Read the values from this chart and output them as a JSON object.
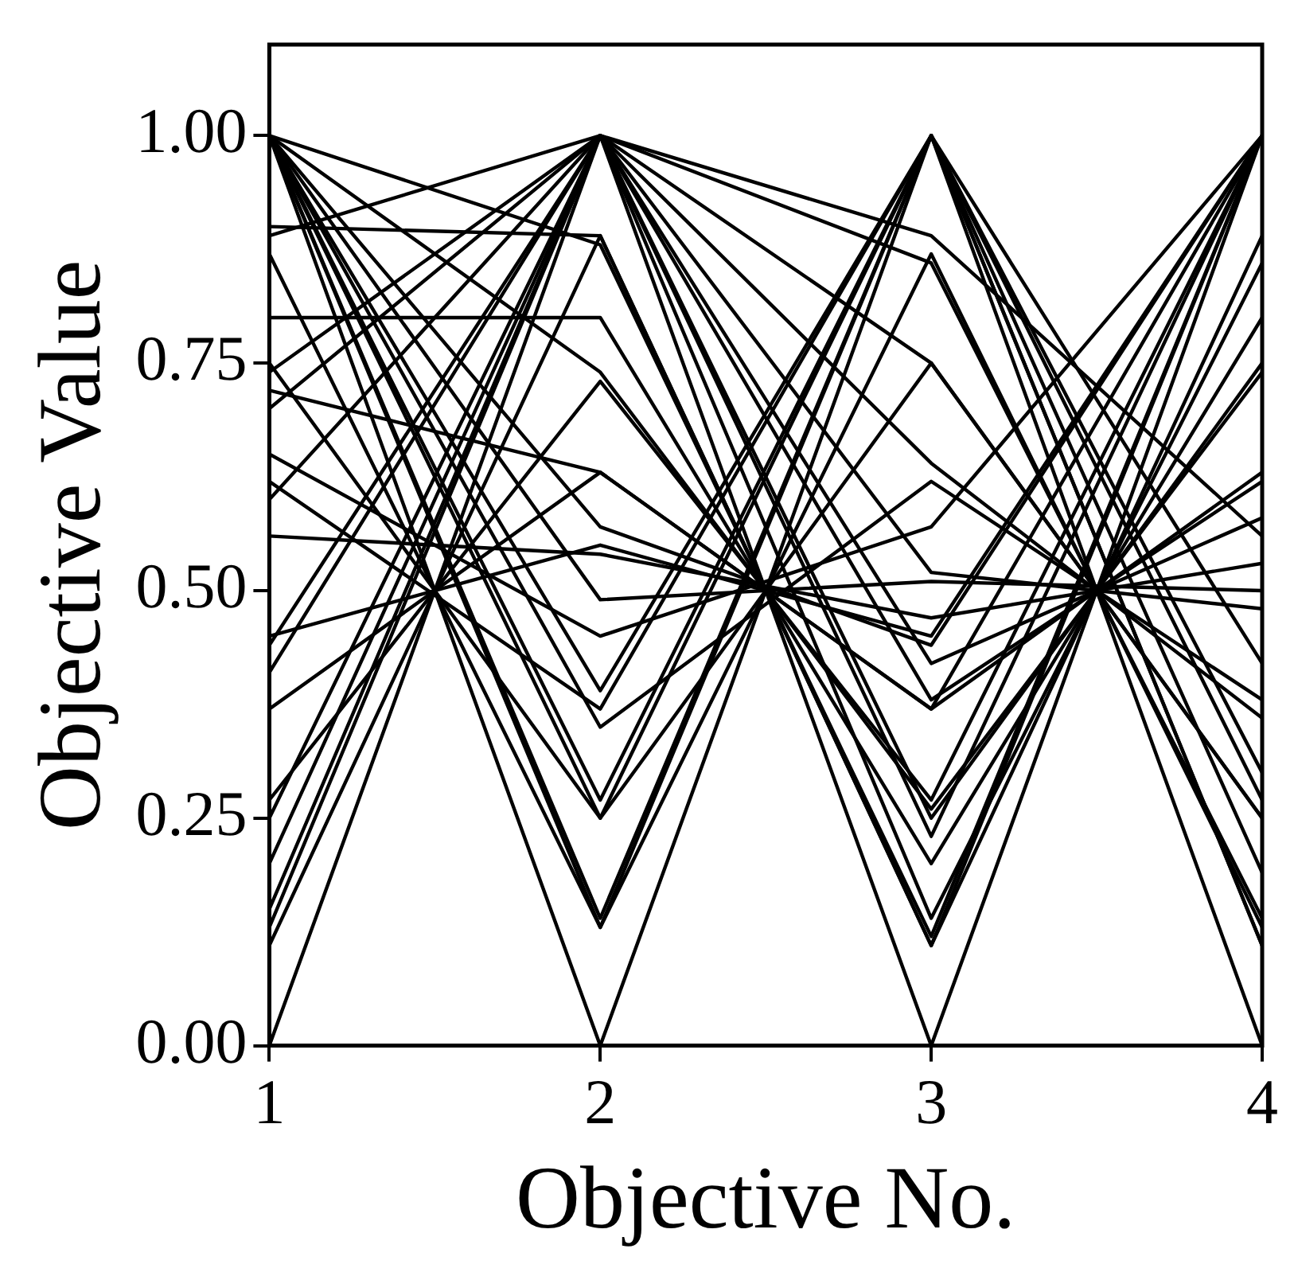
{
  "chart_data": {
    "type": "line",
    "xlabel": "Objective No.",
    "ylabel": "Objective Value",
    "x": [
      1,
      2,
      3,
      4
    ],
    "xlim": [
      1,
      4
    ],
    "xticks": [
      1,
      2,
      3,
      4
    ],
    "ylim": [
      0,
      1.1
    ],
    "yticks": [
      {
        "value": 0,
        "label": "0.00"
      },
      {
        "value": 0.25,
        "label": "0.25"
      },
      {
        "value": 0.5,
        "label": "0.50"
      },
      {
        "value": 0.75,
        "label": "0.75"
      },
      {
        "value": 1,
        "label": "1.00"
      }
    ],
    "grid": false,
    "legend": false,
    "marker": "none",
    "line_style": "solid",
    "series": [
      {
        "color": "#000000",
        "values": [
          1,
          0,
          1,
          0
        ]
      },
      {
        "color": "#000000",
        "values": [
          0,
          1,
          0,
          1
        ]
      },
      {
        "color": "#000000",
        "values": [
          1,
          0.13,
          0.87,
          0.13
        ]
      },
      {
        "color": "#000000",
        "values": [
          0.87,
          0.13,
          1,
          0.11
        ]
      },
      {
        "color": "#000000",
        "values": [
          1,
          0.14,
          1,
          0.11
        ]
      },
      {
        "color": "#000000",
        "values": [
          0.11,
          0.89,
          0.11,
          1
        ]
      },
      {
        "color": "#000000",
        "values": [
          0.13,
          1,
          0.14,
          0.86
        ]
      },
      {
        "color": "#000000",
        "values": [
          0.15,
          1,
          0.25,
          0.75
        ]
      },
      {
        "color": "#000000",
        "values": [
          1,
          0.25,
          0.75,
          0.25
        ]
      },
      {
        "color": "#000000",
        "values": [
          0.75,
          0.25,
          1,
          0.27
        ]
      },
      {
        "color": "#000000",
        "values": [
          0.27,
          0.73,
          0.27,
          1
        ]
      },
      {
        "color": "#000000",
        "values": [
          1,
          0.27,
          1,
          0.19
        ]
      },
      {
        "color": "#000000",
        "values": [
          0.2,
          1,
          0.23,
          1
        ]
      },
      {
        "color": "#000000",
        "values": [
          0.25,
          1,
          0.38,
          0.62
        ]
      },
      {
        "color": "#000000",
        "values": [
          1,
          0.35,
          0.62,
          0.38
        ]
      },
      {
        "color": "#000000",
        "values": [
          0.37,
          0.63,
          0.37,
          1
        ]
      },
      {
        "color": "#000000",
        "values": [
          0.62,
          0.37,
          1,
          0.42
        ]
      },
      {
        "color": "#000000",
        "values": [
          1,
          0.39,
          1,
          0.3
        ]
      },
      {
        "color": "#000000",
        "values": [
          0.41,
          1,
          0.42,
          0.58
        ]
      },
      {
        "color": "#000000",
        "values": [
          0.45,
          0.55,
          0.45,
          1
        ]
      },
      {
        "color": "#000000",
        "values": [
          1,
          0.49,
          0.51,
          0.5
        ]
      },
      {
        "color": "#000000",
        "values": [
          0.56,
          0.54,
          0.47,
          0.53
        ]
      },
      {
        "color": "#000000",
        "values": [
          0.6,
          1,
          0.52,
          0.48
        ]
      },
      {
        "color": "#000000",
        "values": [
          0.65,
          0.45,
          0.57,
          1
        ]
      },
      {
        "color": "#000000",
        "values": [
          1,
          0.57,
          0.44,
          1
        ]
      },
      {
        "color": "#000000",
        "values": [
          0.7,
          1,
          0.64,
          0.36
        ]
      },
      {
        "color": "#000000",
        "values": [
          0.72,
          0.63,
          0.37,
          0.63
        ]
      },
      {
        "color": "#000000",
        "values": [
          1,
          0.74,
          0.26,
          0.74
        ]
      },
      {
        "color": "#000000",
        "values": [
          0.74,
          1,
          0.75,
          0.25
        ]
      },
      {
        "color": "#000000",
        "values": [
          0.8,
          0.8,
          0.2,
          0.8
        ]
      },
      {
        "color": "#000000",
        "values": [
          0.89,
          1,
          0.86,
          0.14
        ]
      },
      {
        "color": "#000000",
        "values": [
          0.9,
          0.89,
          0.11,
          0.89
        ]
      },
      {
        "color": "#000000",
        "values": [
          1,
          0.88,
          0.12,
          1
        ]
      },
      {
        "color": "#000000",
        "values": [
          0.44,
          1,
          0.89,
          0.56
        ]
      }
    ]
  }
}
